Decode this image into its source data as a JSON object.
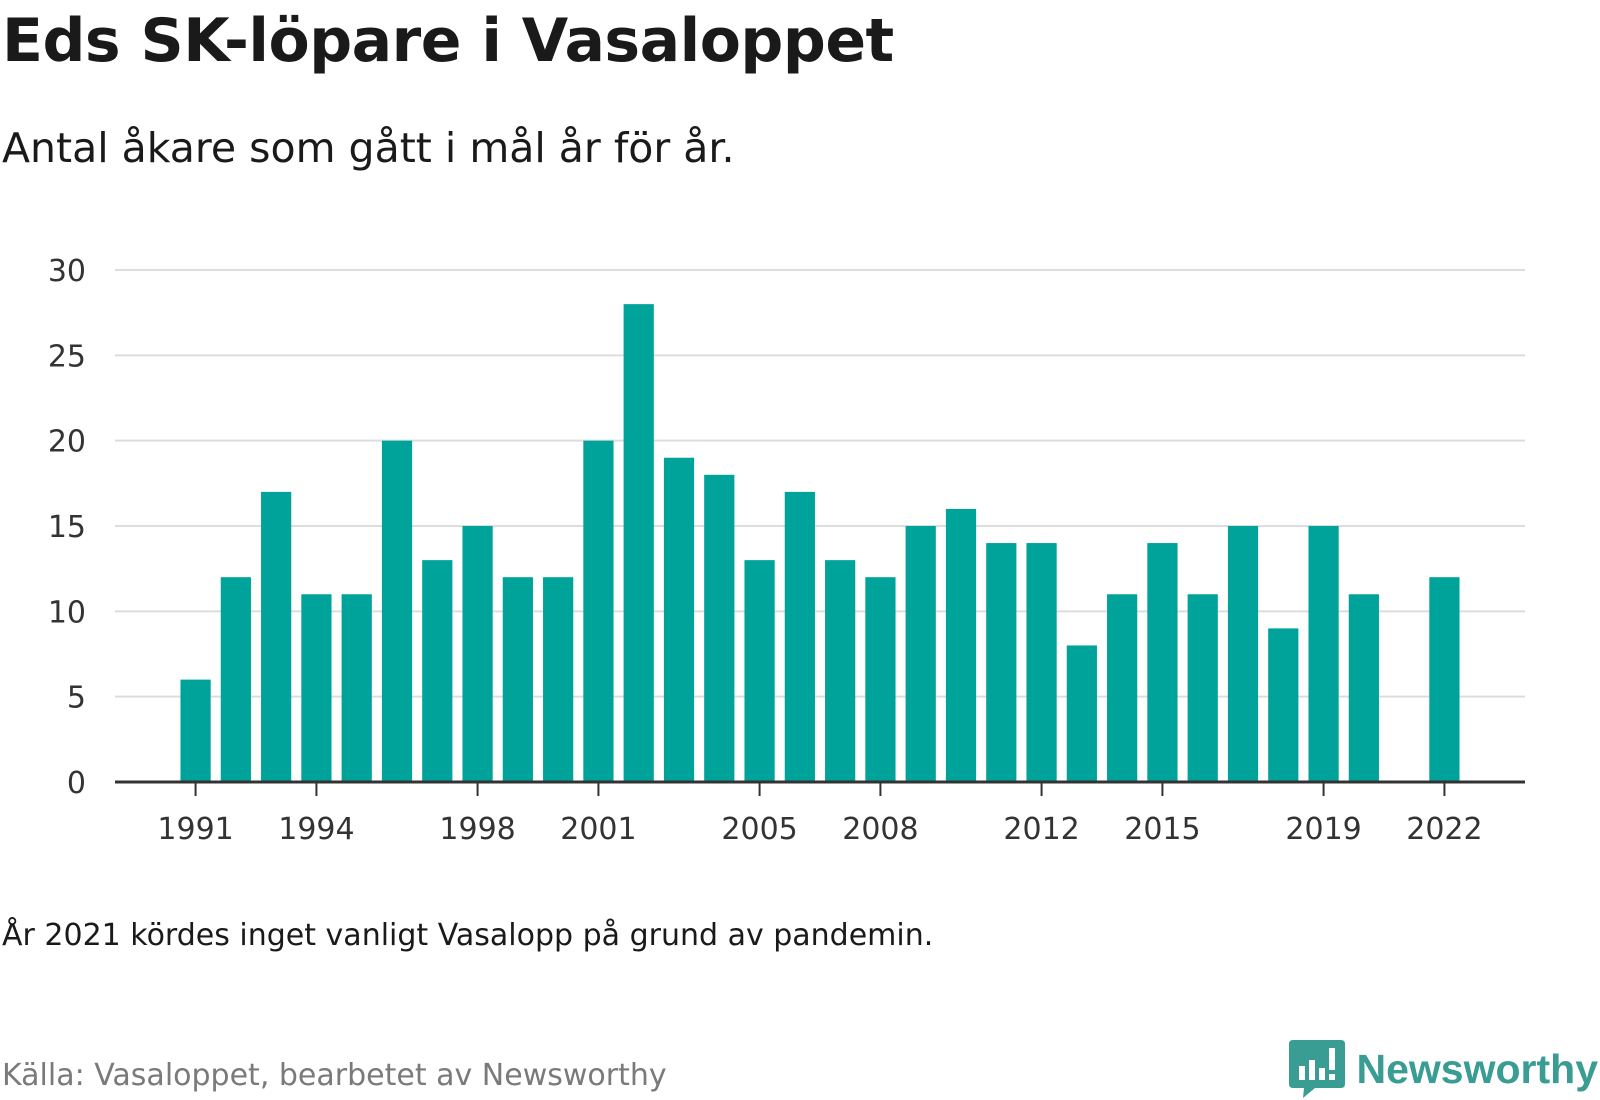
{
  "title": "Eds SK-löpare i Vasaloppet",
  "subtitle": "Antal åkare som gått i mål år för år.",
  "note": "År 2021 kördes inget vanligt Vasalopp på grund av pandemin.",
  "source": "Källa: Vasaloppet, bearbetet av Newsworthy",
  "brand": {
    "name": "Newsworthy",
    "color": "#3a9d93",
    "icon": "newsworthy-logo-icon"
  },
  "colors": {
    "bar": "#00a399",
    "grid": "#dddddd",
    "axis": "#333333"
  },
  "chart_data": {
    "type": "bar",
    "title": "Eds SK-löpare i Vasaloppet",
    "subtitle": "Antal åkare som gått i mål år för år.",
    "xlabel": "",
    "ylabel": "",
    "x_range": [
      1989,
      2024
    ],
    "ylim": [
      0,
      30
    ],
    "yticks": [
      0,
      5,
      10,
      15,
      20,
      25,
      30
    ],
    "xticks": [
      1991,
      1994,
      1998,
      2001,
      2005,
      2008,
      2012,
      2015,
      2019,
      2022
    ],
    "grid": true,
    "legend": "none",
    "categories": [
      1991,
      1992,
      1993,
      1994,
      1995,
      1996,
      1997,
      1998,
      1999,
      2000,
      2001,
      2002,
      2003,
      2004,
      2005,
      2006,
      2007,
      2008,
      2009,
      2010,
      2011,
      2012,
      2013,
      2014,
      2015,
      2016,
      2017,
      2018,
      2019,
      2020,
      2022
    ],
    "values": [
      6,
      12,
      17,
      11,
      11,
      20,
      13,
      15,
      12,
      12,
      20,
      28,
      19,
      18,
      13,
      17,
      13,
      12,
      15,
      16,
      14,
      14,
      8,
      11,
      14,
      11,
      15,
      9,
      15,
      11,
      12
    ]
  }
}
